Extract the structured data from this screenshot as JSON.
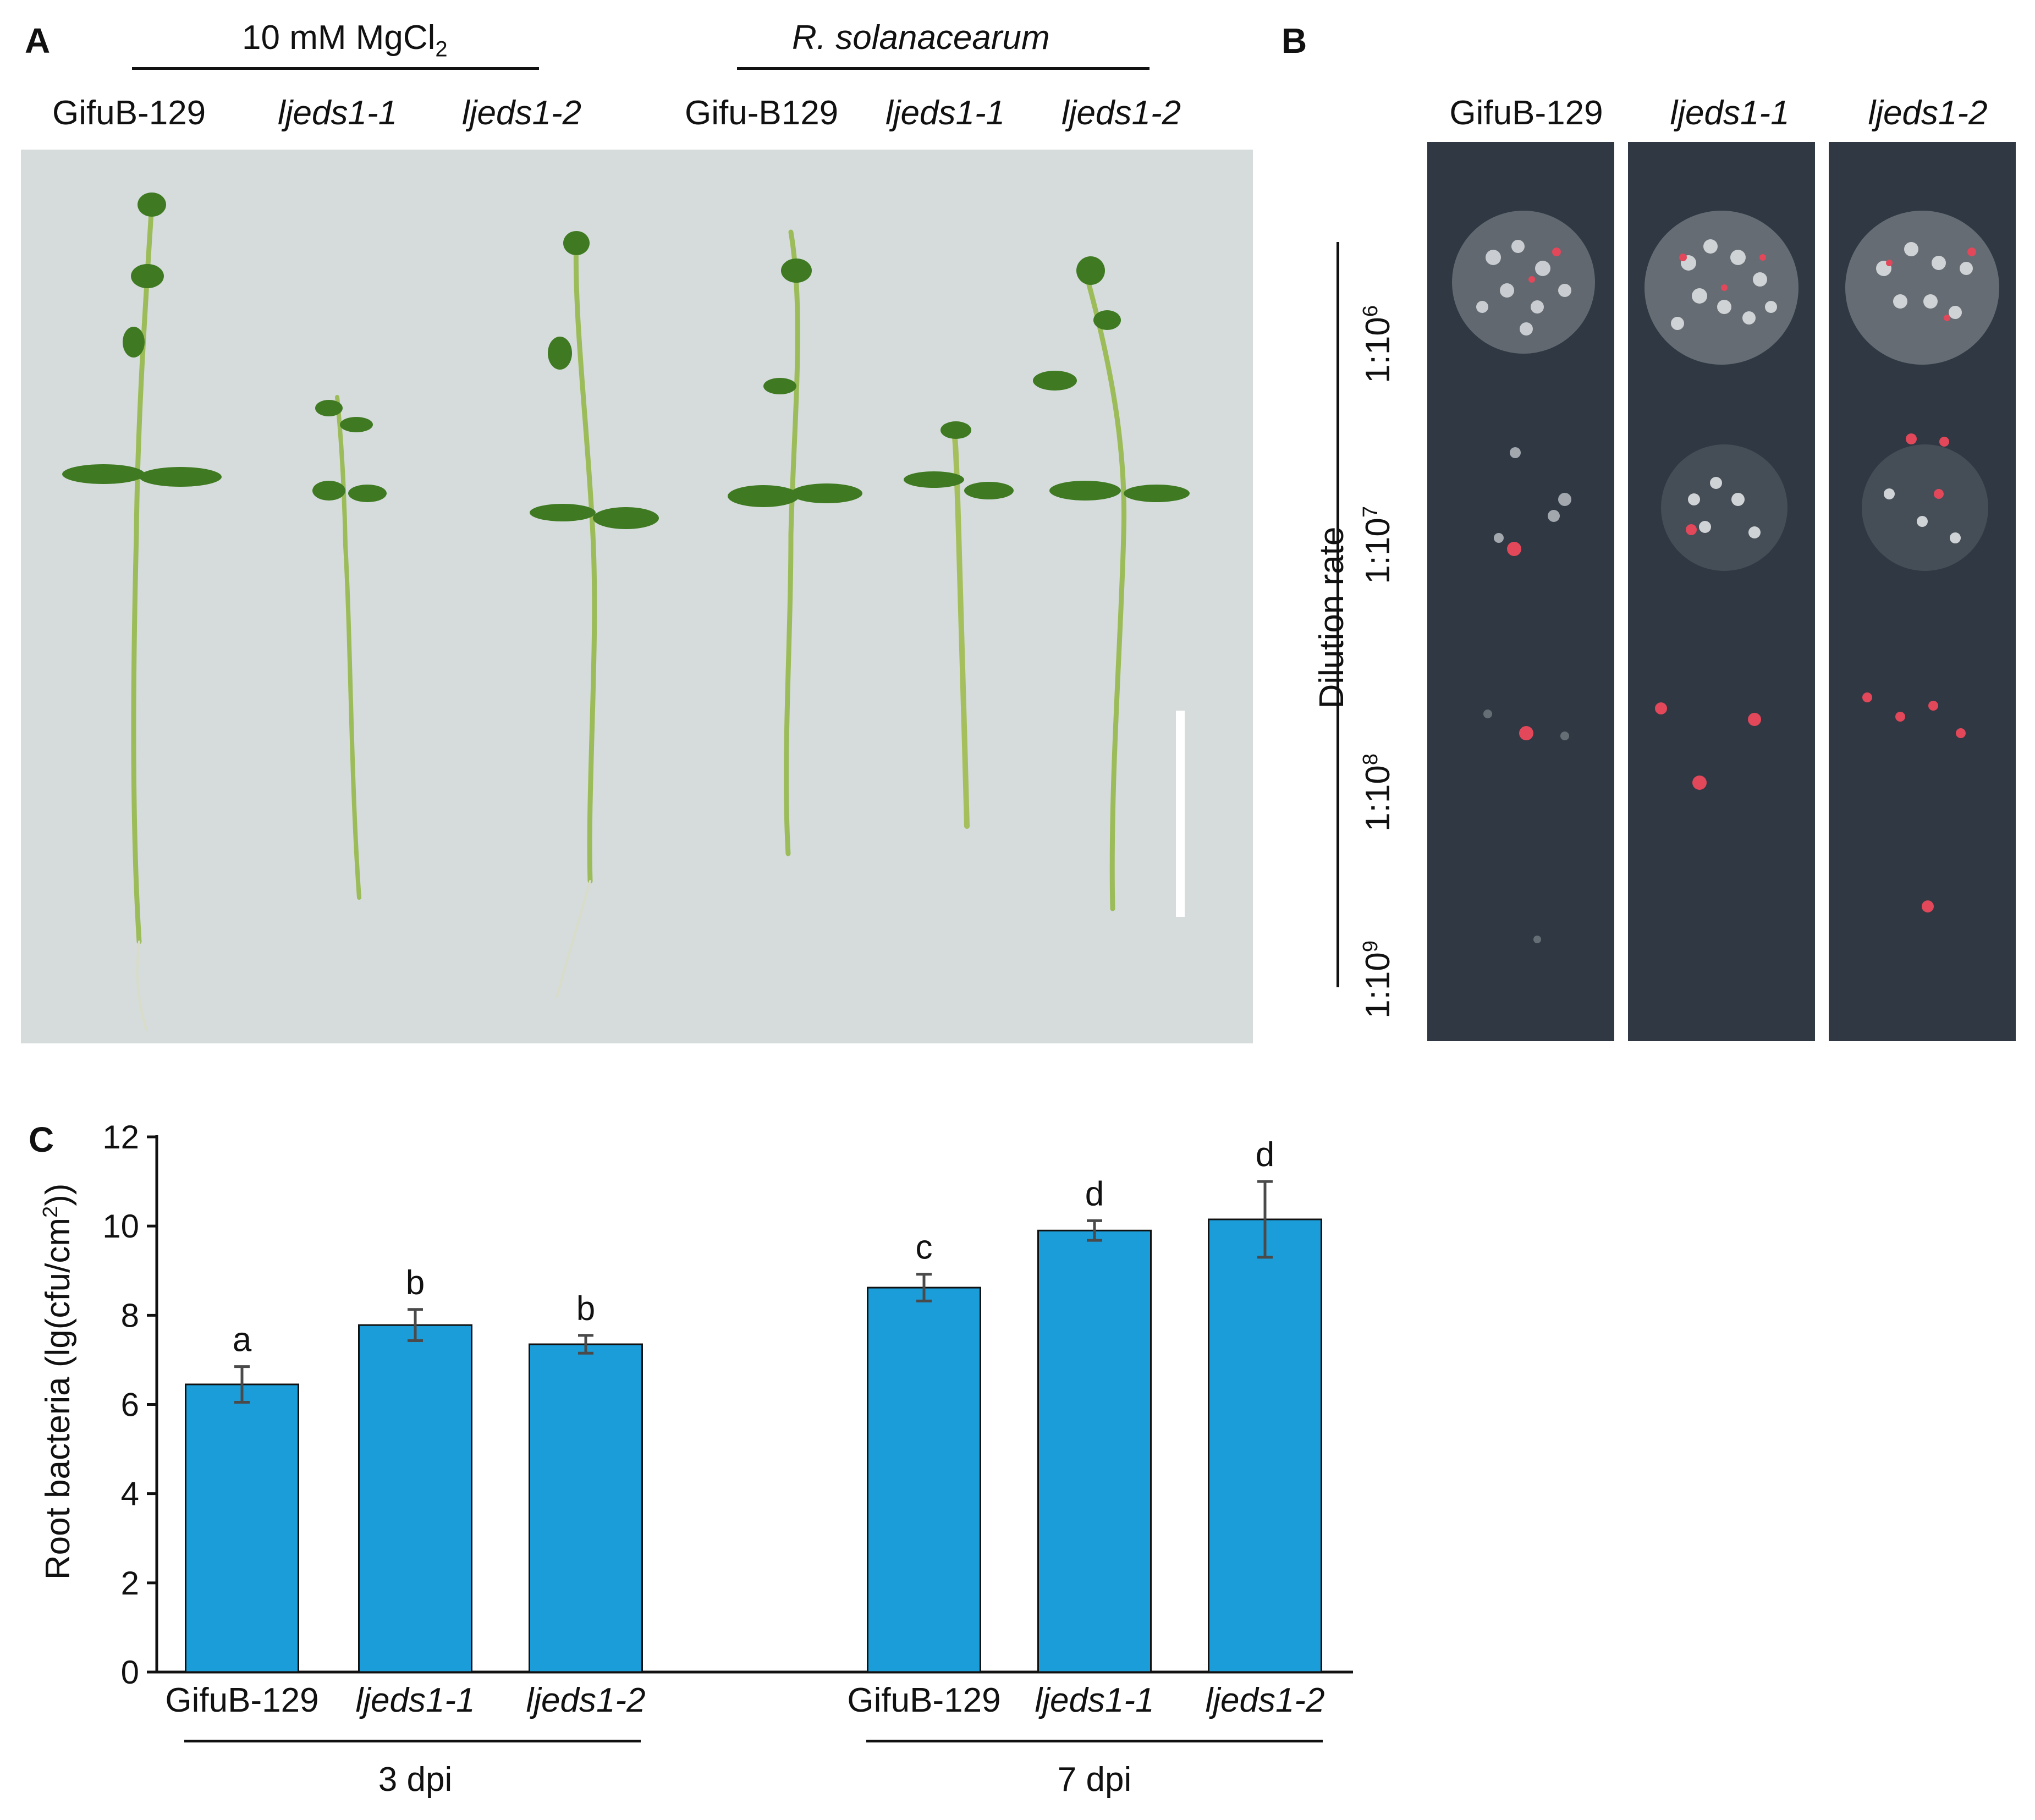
{
  "panel_a": {
    "label": "A",
    "groups": [
      "10 mM MgCl",
      "R. solanacearum"
    ],
    "mgcl_subscript": "2",
    "genotypes": [
      "GifuB-129",
      "ljeds1-1",
      "ljeds1-2",
      "Gifu-B129",
      "ljeds1-1",
      "ljeds1-2"
    ]
  },
  "panel_b": {
    "label": "B",
    "genotypes": [
      "GifuB-129",
      "ljeds1-1",
      "ljeds1-2"
    ],
    "axis_label": "Dilution rate",
    "dilutions": [
      {
        "base": "1:10",
        "exp": "6"
      },
      {
        "base": "1:10",
        "exp": "7"
      },
      {
        "base": "1:10",
        "exp": "8"
      },
      {
        "base": "1:10",
        "exp": "9"
      }
    ]
  },
  "panel_c": {
    "label": "C",
    "ylabel_prefix": "Root  bacteria (lg(cfu/cm",
    "ylabel_sup": "2",
    "ylabel_suffix": "))",
    "groups": [
      "3 dpi",
      "7 dpi"
    ]
  },
  "chart_data": {
    "type": "bar",
    "categories": [
      "GifuB-129",
      "ljeds1-1",
      "ljeds1-2",
      "GifuB-129",
      "ljeds1-1",
      "ljeds1-2"
    ],
    "values": [
      6.45,
      7.78,
      7.35,
      8.62,
      9.9,
      10.15
    ],
    "errors": [
      0.4,
      0.35,
      0.2,
      0.3,
      0.22,
      0.85
    ],
    "letters": [
      "a",
      "b",
      "b",
      "c",
      "d",
      "d"
    ],
    "group_labels": [
      "3 dpi",
      "7 dpi"
    ],
    "yticks": [
      0,
      2,
      4,
      6,
      8,
      10,
      12
    ],
    "ylim": [
      0,
      12
    ],
    "bar_color": "#1b9dd9",
    "grid": false
  }
}
